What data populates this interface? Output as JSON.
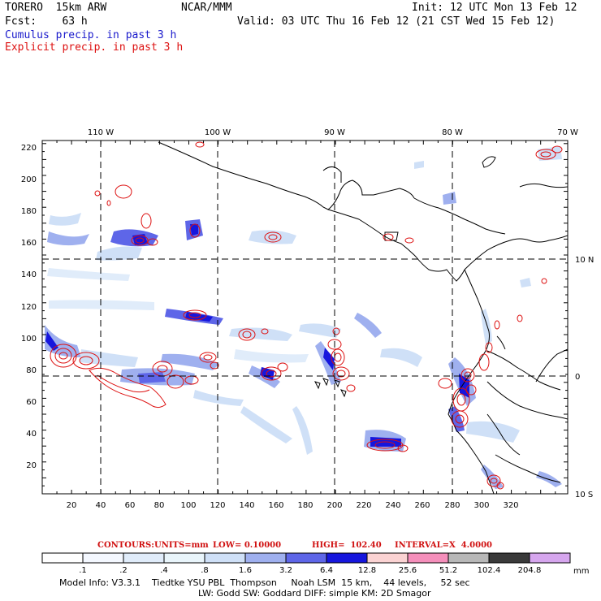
{
  "header": {
    "model_name": "TORERO  15km ARW",
    "source": "NCAR/MMM",
    "init": "Init: 12 UTC Mon 13 Feb 12",
    "forecast": "Fcst:    63 h",
    "valid": "Valid: 03 UTC Thu 16 Feb 12 (21 CST Wed 15 Feb 12)",
    "field1": "Cumulus precip. in past 3 h",
    "field2": "Explicit precip. in past 3 h"
  },
  "colors": {
    "cumulus": "#1a1acc",
    "explicit": "#dd1111",
    "coast": "#000000"
  },
  "axes": {
    "lon_labels": [
      "110 W",
      "100 W",
      "90 W",
      "80 W",
      "70 W"
    ],
    "lat_labels": [
      "10 N",
      "0",
      "10 S"
    ],
    "x_ticks": [
      "20",
      "40",
      "60",
      "80",
      "100",
      "120",
      "140",
      "160",
      "180",
      "200",
      "220",
      "240",
      "260",
      "280",
      "300",
      "320"
    ],
    "y_ticks": [
      "20",
      "40",
      "60",
      "80",
      "100",
      "120",
      "140",
      "160",
      "180",
      "200",
      "220"
    ]
  },
  "contour_info": {
    "contours": "CONTOURS:",
    "units": "UNITS=mm",
    "low": "LOW= 0.10000",
    "high": "HIGH=  102.40",
    "interval": "INTERVAL=X  4.0000"
  },
  "colorbar": {
    "levels": [
      ".1",
      ".2",
      ".4",
      ".8",
      "1.6",
      "3.2",
      "6.4",
      "12.8",
      "25.6",
      "51.2",
      "102.4",
      "204.8"
    ],
    "unit": "mm",
    "fill_colors": [
      "#ffffff",
      "#f4f8ff",
      "#e0ecfa",
      "#e9f5fb",
      "#cfe0f7",
      "#9fb0ef",
      "#5e66e8",
      "#1616dd",
      "#fbd3d3",
      "#f58fbb",
      "#b8b8b8",
      "#3a3a3a",
      "#d6a6ee"
    ]
  },
  "model_info": {
    "line1": "Model Info: V3.3.1    Tiedtke YSU PBL  Thompson     Noah LSM  15 km,    44 levels,     52 sec",
    "line2": "LW: Godd SW: Goddard DIFF: simple KM: 2D Smagor"
  }
}
